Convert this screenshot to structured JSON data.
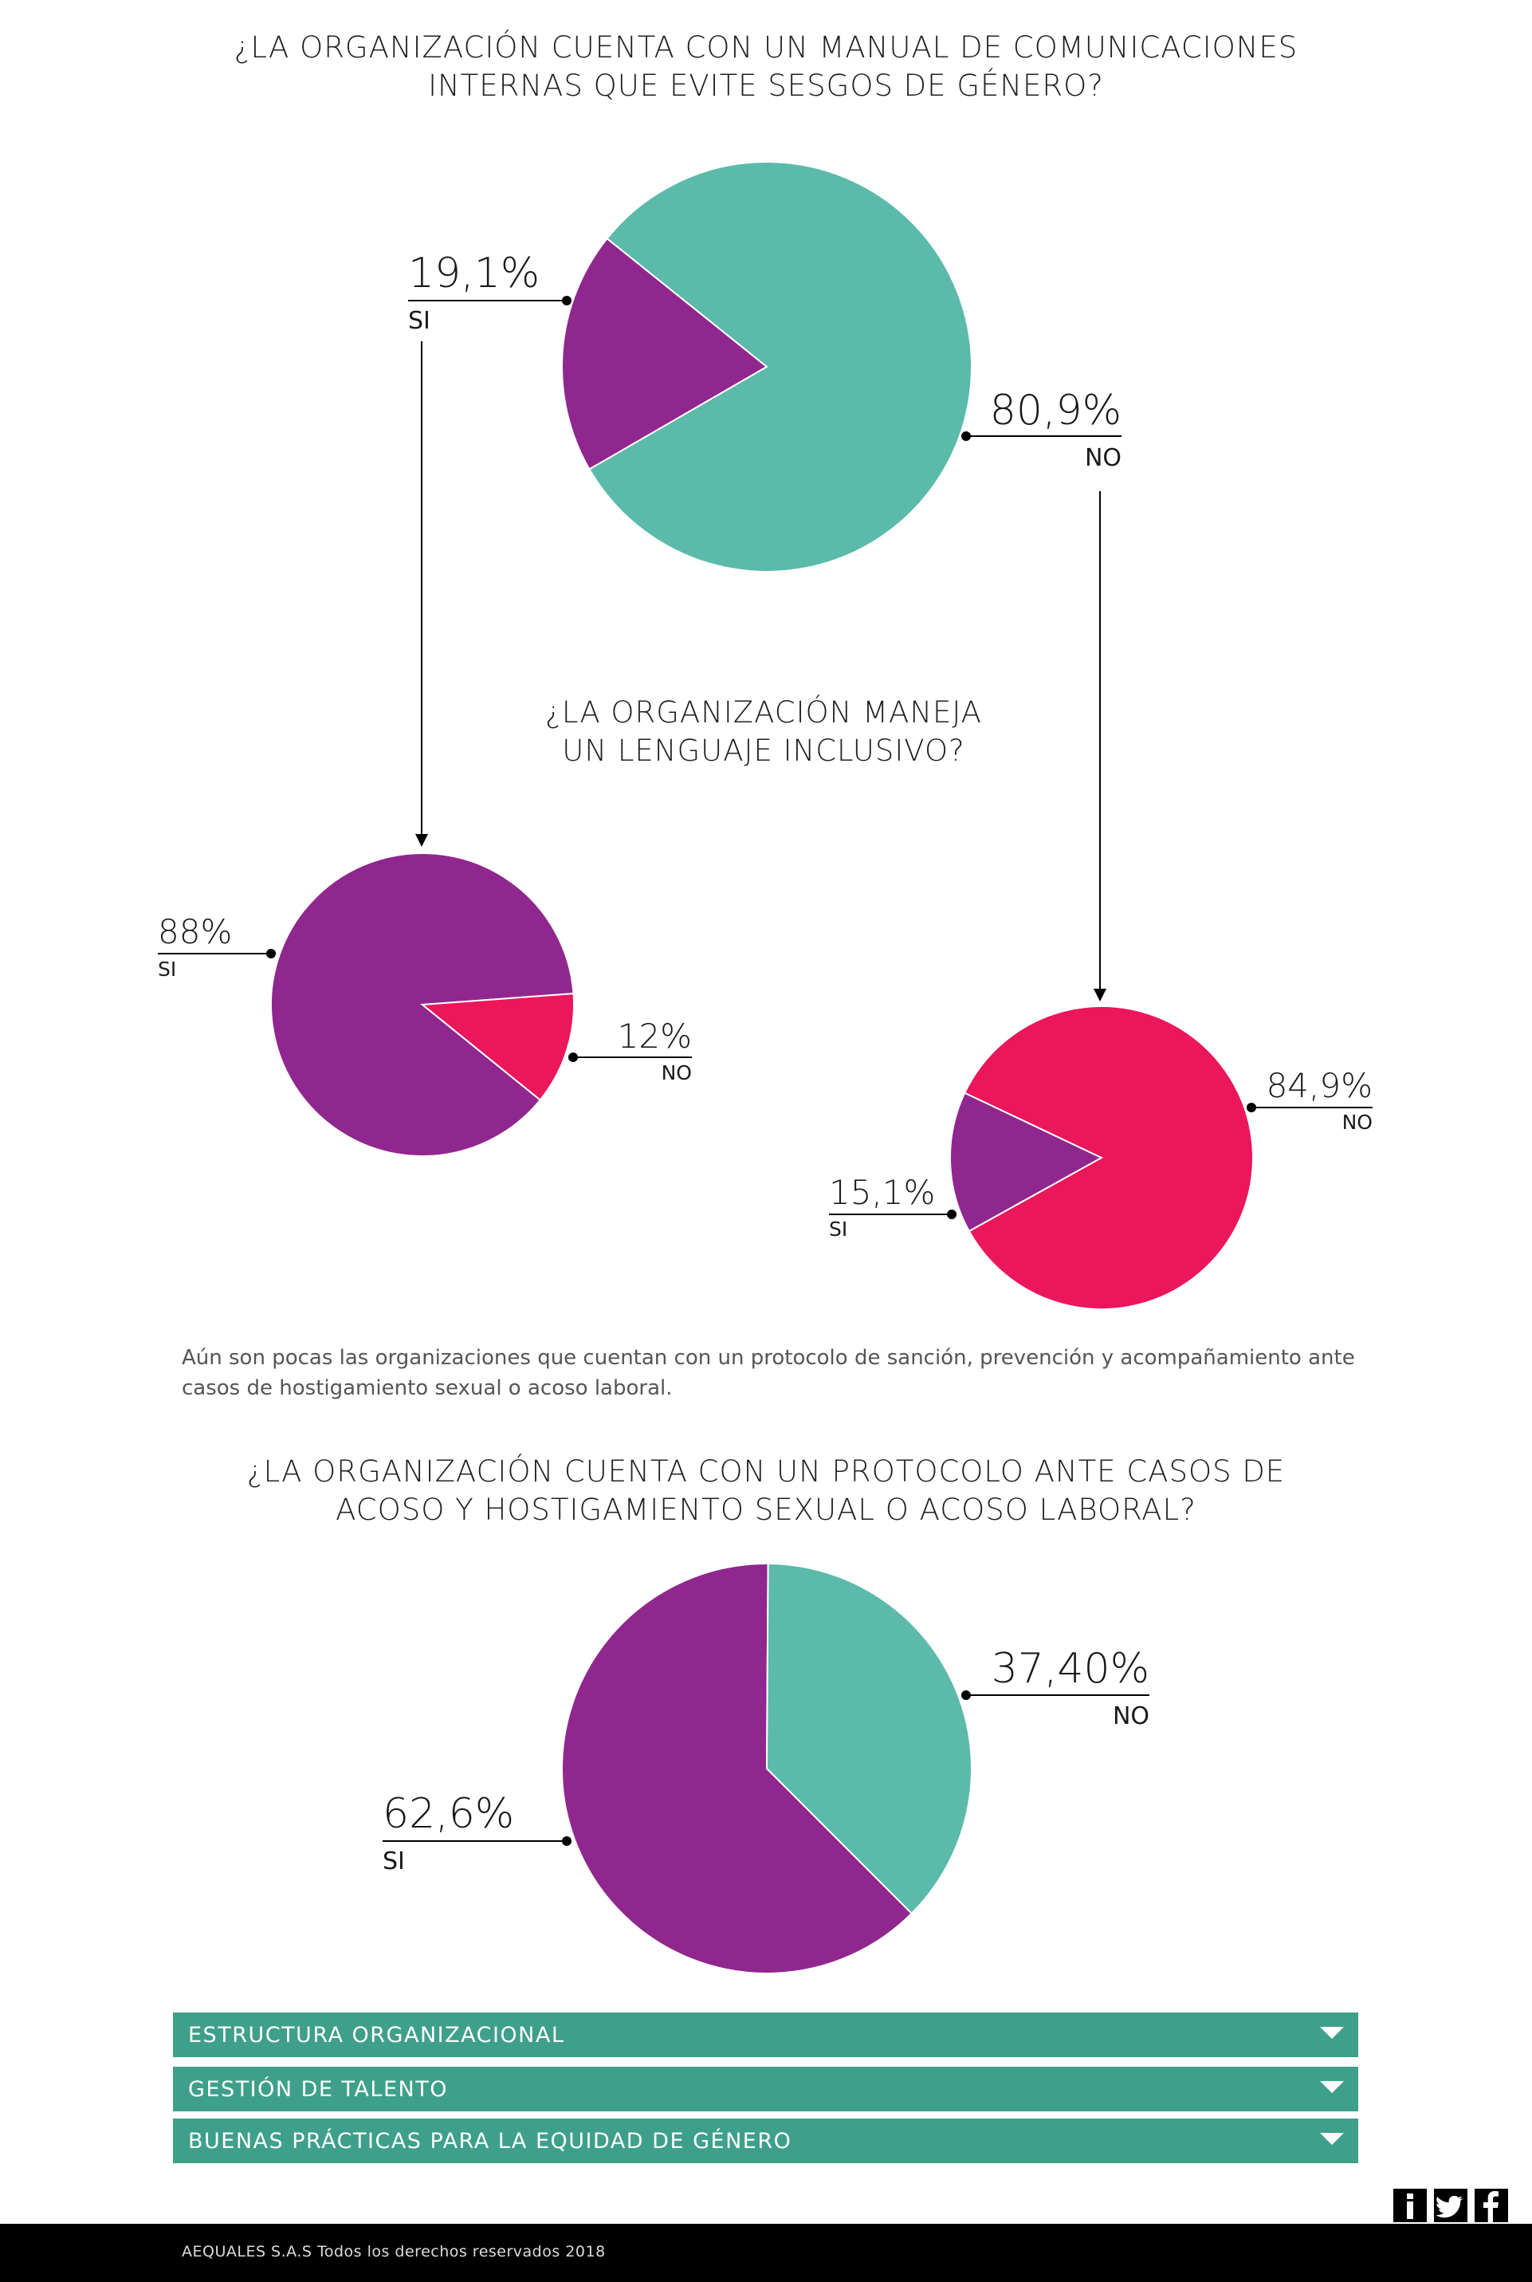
{
  "colors": {
    "teal": "#5bbaa9",
    "purple": "#90278e",
    "pink": "#eb165b",
    "accordion_bg": "#3ea08a",
    "footer_bg": "#000000"
  },
  "questions": {
    "q1": {
      "line1": "¿LA ORGANIZACIÓN CUENTA CON UN MANUAL DE COMUNICACIONES",
      "line2": "INTERNAS QUE EVITE SESGOS DE GÉNERO?"
    },
    "q2": {
      "line1": "¿LA ORGANIZACIÓN MANEJA",
      "line2": "UN LENGUAJE INCLUSIVO?"
    },
    "q3": {
      "line1": "¿LA ORGANIZACIÓN CUENTA CON UN PROTOCOLO ANTE CASOS DE",
      "line2": "ACOSO Y HOSTIGAMIENTO SEXUAL O ACOSO LABORAL?"
    }
  },
  "note": "Aún son pocas las organizaciones que cuentan con un protocolo de sanción, prevención y acompañamiento ante casos de hostigamiento sexual o acoso laboral.",
  "chart_data": [
    {
      "type": "pie",
      "title": "¿LA ORGANIZACIÓN CUENTA CON UN MANUAL DE COMUNICACIONES INTERNAS QUE EVITE SESGOS DE GÉNERO?",
      "slices": [
        {
          "label": "SI",
          "value_text": "19,1%",
          "value": 19.1,
          "color": "#90278e"
        },
        {
          "label": "NO",
          "value_text": "80,9%",
          "value": 80.9,
          "color": "#5bbaa9"
        }
      ]
    },
    {
      "type": "pie",
      "title": "¿LA ORGANIZACIÓN MANEJA UN LENGUAJE INCLUSIVO?",
      "subset": "SI",
      "slices": [
        {
          "label": "SI",
          "value_text": "88%",
          "value": 88,
          "color": "#90278e"
        },
        {
          "label": "NO",
          "value_text": "12%",
          "value": 12,
          "color": "#eb165b"
        }
      ]
    },
    {
      "type": "pie",
      "title": "¿LA ORGANIZACIÓN MANEJA UN LENGUAJE INCLUSIVO?",
      "subset": "NO",
      "slices": [
        {
          "label": "SI",
          "value_text": "15,1%",
          "value": 15.1,
          "color": "#90278e"
        },
        {
          "label": "NO",
          "value_text": "84,9%",
          "value": 84.9,
          "color": "#eb165b"
        }
      ]
    },
    {
      "type": "pie",
      "title": "¿LA ORGANIZACIÓN CUENTA CON UN PROTOCOLO ANTE CASOS DE ACOSO Y HOSTIGAMIENTO SEXUAL O ACOSO LABORAL?",
      "slices": [
        {
          "label": "SI",
          "value_text": "62,6%",
          "value": 62.6,
          "color": "#90278e"
        },
        {
          "label": "NO",
          "value_text": "37,40%",
          "value": 37.4,
          "color": "#5bbaa9"
        }
      ]
    }
  ],
  "accordions": [
    {
      "label": "ESTRUCTURA ORGANIZACIONAL"
    },
    {
      "label": "GESTIÓN DE TALENTO"
    },
    {
      "label": "BUENAS PRÁCTICAS PARA LA EQUIDAD DE GÉNERO"
    }
  ],
  "social": [
    "info-icon",
    "twitter-icon",
    "facebook-icon"
  ],
  "footer": {
    "copyright": "AEQUALES  S.A.S Todos los derechos reservados 2018"
  }
}
